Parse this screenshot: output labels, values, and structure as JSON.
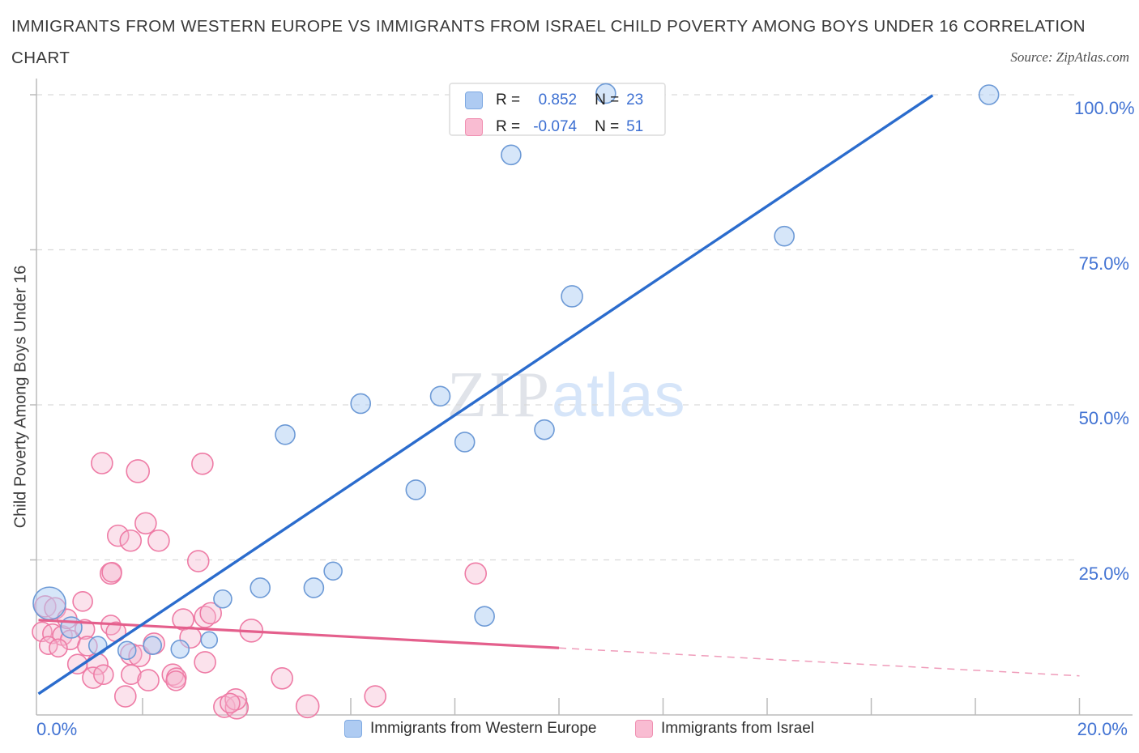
{
  "title": {
    "line1": "IMMIGRANTS FROM WESTERN EUROPE VS IMMIGRANTS FROM ISRAEL CHILD POVERTY AMONG BOYS UNDER 16 CORRELATION",
    "line2": "CHART"
  },
  "source": "Source: ZipAtlas.com",
  "watermark": {
    "zip": "ZIP",
    "atlas": "atlas"
  },
  "legend_box": {
    "rows": [
      {
        "series": "western_europe",
        "r_label": "R =",
        "r_value": "0.852",
        "n_label": "N =",
        "n_value": "23"
      },
      {
        "series": "israel",
        "r_label": "R =",
        "r_value": "-0.074",
        "n_label": "N =",
        "n_value": "51"
      }
    ]
  },
  "y_axis": {
    "label": "Child Poverty Among Boys Under 16",
    "ticks": [
      "100.0%",
      "75.0%",
      "50.0%",
      "25.0%"
    ],
    "tick_values": [
      100,
      75,
      50,
      25
    ]
  },
  "x_axis": {
    "min_label": "0.0%",
    "max_label": "20.0%",
    "min": 0,
    "max": 20,
    "tick_step": 2
  },
  "bottom_legend": {
    "western_europe": "Immigrants from Western Europe",
    "israel": "Immigrants from Israel"
  },
  "colors": {
    "blue_point_fill": "rgba(173,205,244,0.5)",
    "blue_point_stroke": "#6d9ad6",
    "pink_point_fill": "rgba(246,183,208,0.4)",
    "pink_point_stroke": "#ee7ba5",
    "blue_trend": "#2b6ccd",
    "pink_trend": "#e45f8c",
    "pink_trend_dashed": "#ef9cba",
    "grid": "#d9d9d9",
    "axis": "#bbbbbb",
    "tick_label": "#4273d3",
    "legend_border": "#dcdcdc"
  },
  "chart_data": {
    "type": "scatter",
    "xlabel": "",
    "ylabel": "Child Poverty Among Boys Under 16",
    "xlim": [
      0,
      20
    ],
    "ylim": [
      0,
      100
    ],
    "grid": "horizontal-dashed",
    "legend_position": "top-center",
    "series": [
      {
        "name": "Immigrants from Western Europe",
        "R": 0.852,
        "N": 23,
        "points": [
          [
            0.21,
            18.0,
            20
          ],
          [
            0.63,
            14.1,
            13
          ],
          [
            1.14,
            11.2,
            11
          ],
          [
            1.7,
            10.4,
            11
          ],
          [
            2.19,
            11.2,
            11
          ],
          [
            2.72,
            10.6,
            11
          ],
          [
            3.28,
            12.1,
            10
          ],
          [
            3.54,
            18.7,
            11
          ],
          [
            4.26,
            20.5,
            12
          ],
          [
            5.29,
            20.5,
            12
          ],
          [
            5.66,
            23.2,
            11
          ],
          [
            4.74,
            45.2,
            12
          ],
          [
            6.19,
            50.2,
            12
          ],
          [
            7.72,
            51.4,
            12
          ],
          [
            8.19,
            44.0,
            12
          ],
          [
            9.72,
            46.0,
            12
          ],
          [
            7.25,
            36.3,
            12
          ],
          [
            8.57,
            15.9,
            12
          ],
          [
            9.08,
            90.3,
            12
          ],
          [
            10.9,
            100.2,
            12
          ],
          [
            10.25,
            67.5,
            13
          ],
          [
            14.33,
            77.2,
            12
          ],
          [
            18.26,
            100.0,
            12
          ]
        ],
        "trendline": {
          "x1": 0,
          "y1": 3.4,
          "x2": 17.18,
          "y2": 99.9
        }
      },
      {
        "name": "Immigrants from Israel",
        "R": -0.074,
        "N": 51,
        "points": [
          [
            0.13,
            17.5,
            13
          ],
          [
            0.32,
            17.2,
            13
          ],
          [
            0.07,
            13.4,
            12
          ],
          [
            0.27,
            13.1,
            12
          ],
          [
            0.46,
            12.8,
            12
          ],
          [
            0.61,
            12.1,
            12
          ],
          [
            0.19,
            11.2,
            11
          ],
          [
            0.38,
            10.8,
            11
          ],
          [
            0.85,
            18.3,
            12
          ],
          [
            0.89,
            13.8,
            12
          ],
          [
            0.94,
            11.1,
            12
          ],
          [
            0.75,
            8.2,
            12
          ],
          [
            1.13,
            8.2,
            13
          ],
          [
            1.05,
            6.0,
            13
          ],
          [
            1.25,
            6.5,
            12
          ],
          [
            1.39,
            22.8,
            13
          ],
          [
            1.39,
            14.5,
            12
          ],
          [
            1.49,
            13.4,
            12
          ],
          [
            1.78,
            9.8,
            13
          ],
          [
            1.94,
            9.5,
            13
          ],
          [
            1.78,
            6.5,
            12
          ],
          [
            2.11,
            5.6,
            13
          ],
          [
            1.67,
            3.0,
            13
          ],
          [
            2.22,
            11.5,
            13
          ],
          [
            2.78,
            15.4,
            13
          ],
          [
            2.92,
            12.5,
            13
          ],
          [
            3.2,
            15.8,
            13
          ],
          [
            3.31,
            16.4,
            13
          ],
          [
            2.58,
            6.5,
            13
          ],
          [
            2.65,
            6.0,
            12
          ],
          [
            3.2,
            8.5,
            13
          ],
          [
            3.57,
            1.3,
            13
          ],
          [
            3.81,
            1.2,
            14
          ],
          [
            4.09,
            13.6,
            14
          ],
          [
            4.68,
            5.9,
            13
          ],
          [
            3.79,
            2.5,
            13
          ],
          [
            3.68,
            1.9,
            12
          ],
          [
            5.17,
            1.4,
            14
          ],
          [
            6.47,
            3.0,
            13
          ],
          [
            8.4,
            22.8,
            13
          ],
          [
            1.22,
            40.6,
            13
          ],
          [
            1.91,
            39.3,
            14
          ],
          [
            3.15,
            40.5,
            13
          ],
          [
            2.06,
            30.9,
            13
          ],
          [
            1.53,
            28.9,
            13
          ],
          [
            1.77,
            28.1,
            13
          ],
          [
            2.31,
            28.1,
            13
          ],
          [
            3.07,
            24.8,
            13
          ],
          [
            1.41,
            23.0,
            12
          ],
          [
            2.64,
            5.5,
            12
          ],
          [
            0.55,
            15.5,
            12
          ]
        ],
        "trendline": {
          "x1": 0,
          "y1": 15.3,
          "x2": 10,
          "y2": 10.8
        },
        "trendline_dashed": {
          "x1": 10,
          "y1": 10.8,
          "x2": 20,
          "y2": 6.3
        }
      }
    ]
  }
}
